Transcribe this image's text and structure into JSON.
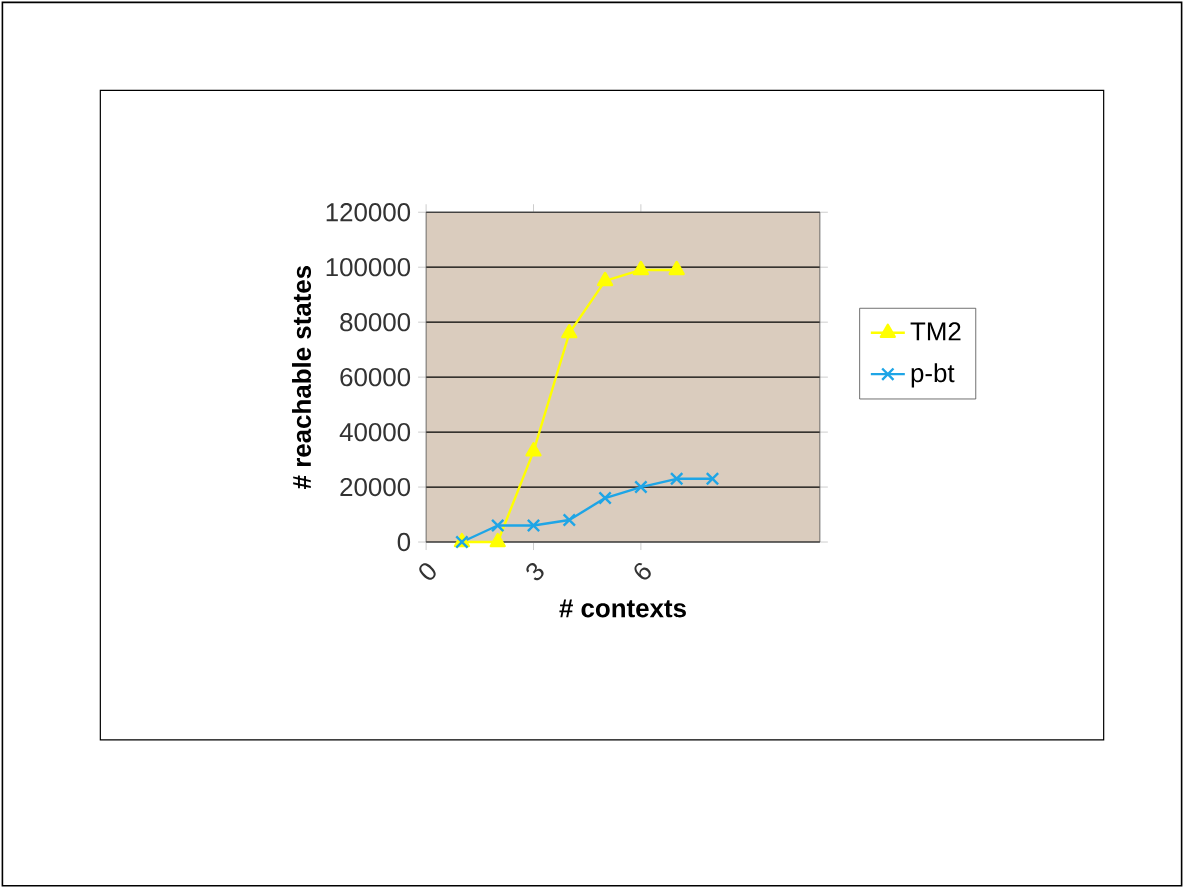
{
  "chart_data": {
    "type": "line",
    "xlabel": "# contexts",
    "ylabel": "# reachable states",
    "xlim": [
      0,
      11
    ],
    "xticks": [
      0,
      3,
      6
    ],
    "ylim": [
      0,
      120000
    ],
    "yticks": [
      0,
      20000,
      40000,
      60000,
      80000,
      100000,
      120000
    ],
    "grid": "y",
    "legend": "right",
    "series": [
      {
        "name": "TM2",
        "color": "#ffff00",
        "marker": "triangle",
        "x": [
          1,
          2,
          3,
          4,
          5,
          6,
          7
        ],
        "values": [
          0,
          0,
          33000,
          76000,
          95000,
          99000,
          99000
        ]
      },
      {
        "name": "p-bt",
        "color": "#1ea5e6",
        "marker": "cross",
        "x": [
          1,
          2,
          3,
          4,
          5,
          6,
          7,
          8
        ],
        "values": [
          0,
          6000,
          6000,
          8000,
          16000,
          20000,
          23000,
          23000
        ]
      }
    ]
  }
}
